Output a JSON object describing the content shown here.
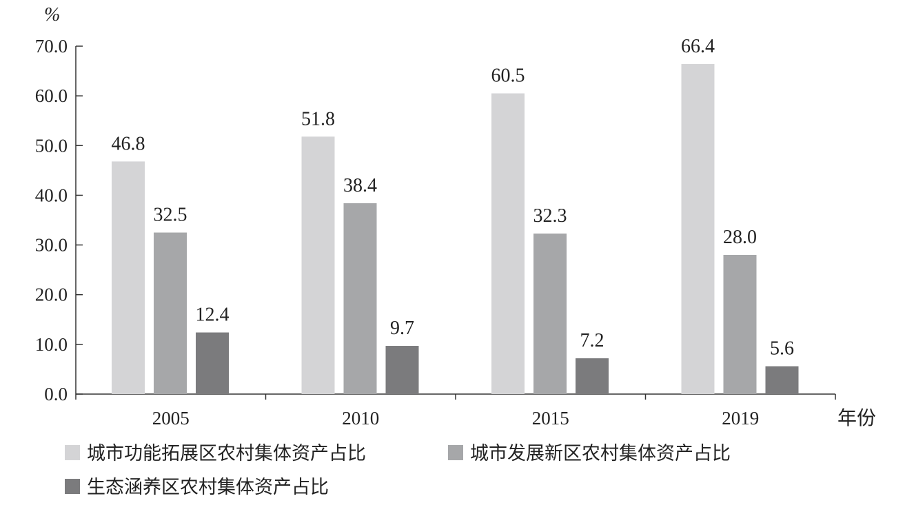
{
  "chart_data": {
    "type": "bar",
    "unit_label": "%",
    "xlabel": "年份",
    "categories": [
      "2005",
      "2010",
      "2015",
      "2019"
    ],
    "series": [
      {
        "name": "城市功能拓展区农村集体资产占比",
        "values": [
          46.8,
          51.8,
          60.5,
          66.4
        ],
        "labels": [
          "46.8",
          "51.8",
          "60.5",
          "66.4"
        ],
        "color": "#d4d4d6"
      },
      {
        "name": "城市发展新区农村集体资产占比",
        "values": [
          32.5,
          38.4,
          32.3,
          28.0
        ],
        "labels": [
          "32.5",
          "38.4",
          "32.3",
          "28.0"
        ],
        "color": "#a6a7a9"
      },
      {
        "name": "生态涵养区农村集体资产占比",
        "values": [
          12.4,
          9.7,
          7.2,
          5.6
        ],
        "labels": [
          "12.4",
          "9.7",
          "7.2",
          "5.6"
        ],
        "color": "#7b7b7d"
      }
    ],
    "yticks": [
      "0.0",
      "10.0",
      "20.0",
      "30.0",
      "40.0",
      "50.0",
      "60.0",
      "70.0"
    ],
    "ylim": [
      0,
      70
    ],
    "grid": false,
    "legend_position": "bottom-left"
  }
}
